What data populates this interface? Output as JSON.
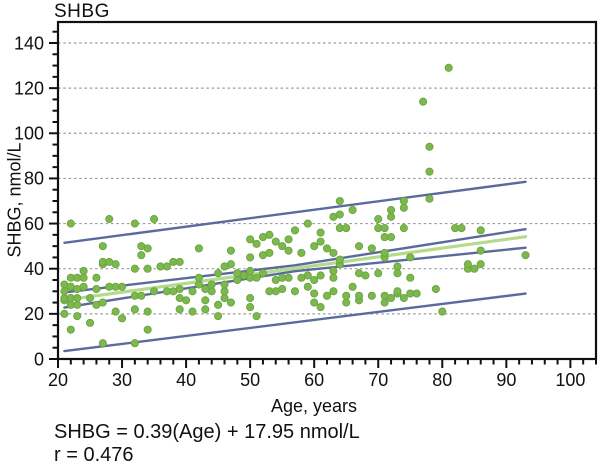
{
  "figure": {
    "title": "SHBG",
    "x_axis_label": "Age, years",
    "y_axis_label": "SHBG, nmol/L",
    "equation_line1": "SHBG = 0.39(Age) + 17.95 nmol/L",
    "equation_line2": "r = 0.476"
  },
  "colors": {
    "point_fill": "#7cb84e",
    "point_stroke": "#69a440",
    "regression_line": "#b6da8c",
    "interval_lines": "#5a6a9c",
    "gridline": "#9b9b9b",
    "axis": "#111111",
    "text": "#111111",
    "background": "#ffffff"
  },
  "chart_data": {
    "type": "scatter",
    "title": "SHBG",
    "xlabel": "Age, years",
    "ylabel": "SHBG, nmol/L",
    "xlim": [
      20,
      104
    ],
    "ylim": [
      0,
      149.3
    ],
    "x_ticks": [
      20,
      30,
      40,
      50,
      60,
      70,
      80,
      90,
      100
    ],
    "y_ticks": [
      0,
      20,
      40,
      60,
      80,
      100,
      120,
      140
    ],
    "x_minor_step": 2,
    "y_minor_step": 5,
    "grid": "horizontal-dashed",
    "legend": "none",
    "stats": {
      "slope": 0.39,
      "intercept": 17.95,
      "r": 0.476
    },
    "lines": [
      {
        "name": "prediction-upper",
        "color": "#5a6a9c",
        "width": 2.4,
        "points": [
          [
            21,
            51.5
          ],
          [
            93,
            78.5
          ]
        ]
      },
      {
        "name": "confidence-upper",
        "color": "#5a6a9c",
        "width": 2.4,
        "points": [
          [
            21,
            29.5
          ],
          [
            57,
            41.5
          ],
          [
            93,
            57.5
          ]
        ]
      },
      {
        "name": "regression",
        "color": "#b6da8c",
        "width": 3.2,
        "points": [
          [
            21,
            26.1
          ],
          [
            93,
            54.2
          ]
        ]
      },
      {
        "name": "confidence-lower",
        "color": "#5a6a9c",
        "width": 2.4,
        "points": [
          [
            21,
            22.8
          ],
          [
            57,
            38.9
          ],
          [
            93,
            49.3
          ]
        ]
      },
      {
        "name": "prediction-lower",
        "color": "#5a6a9c",
        "width": 2.4,
        "points": [
          [
            21,
            3.5
          ],
          [
            93,
            29
          ]
        ]
      }
    ],
    "points": [
      [
        21,
        20
      ],
      [
        21,
        26
      ],
      [
        21,
        27
      ],
      [
        21,
        30
      ],
      [
        21,
        33
      ],
      [
        22,
        13
      ],
      [
        22,
        24
      ],
      [
        22,
        27
      ],
      [
        22,
        32
      ],
      [
        22,
        36
      ],
      [
        22,
        60
      ],
      [
        23,
        19
      ],
      [
        23,
        24
      ],
      [
        23,
        27
      ],
      [
        23,
        31
      ],
      [
        23,
        36
      ],
      [
        24,
        32
      ],
      [
        24,
        36
      ],
      [
        24,
        39
      ],
      [
        25,
        16
      ],
      [
        25,
        27
      ],
      [
        26,
        24
      ],
      [
        26,
        31
      ],
      [
        26,
        36
      ],
      [
        27,
        7
      ],
      [
        27,
        25
      ],
      [
        27,
        42
      ],
      [
        27,
        43
      ],
      [
        27,
        50
      ],
      [
        28,
        32
      ],
      [
        28,
        43
      ],
      [
        28,
        62
      ],
      [
        29,
        21
      ],
      [
        29,
        32
      ],
      [
        29,
        42
      ],
      [
        30,
        18
      ],
      [
        30,
        32
      ],
      [
        32,
        7
      ],
      [
        32,
        22
      ],
      [
        32,
        28
      ],
      [
        32,
        40
      ],
      [
        32,
        60
      ],
      [
        33,
        28
      ],
      [
        33,
        46
      ],
      [
        33,
        50
      ],
      [
        34,
        13
      ],
      [
        34,
        21
      ],
      [
        34,
        40
      ],
      [
        34,
        49
      ],
      [
        35,
        30
      ],
      [
        35,
        62
      ],
      [
        36,
        41
      ],
      [
        37,
        30
      ],
      [
        37,
        41
      ],
      [
        38,
        30
      ],
      [
        38,
        43
      ],
      [
        39,
        22
      ],
      [
        39,
        27
      ],
      [
        39,
        31
      ],
      [
        39,
        43
      ],
      [
        40,
        26
      ],
      [
        41,
        21
      ],
      [
        41,
        30
      ],
      [
        42,
        33
      ],
      [
        42,
        36
      ],
      [
        42,
        49
      ],
      [
        43,
        22
      ],
      [
        43,
        26
      ],
      [
        43,
        31
      ],
      [
        44,
        30
      ],
      [
        44,
        33
      ],
      [
        45,
        19
      ],
      [
        45,
        24
      ],
      [
        45,
        38
      ],
      [
        46,
        27
      ],
      [
        46,
        30
      ],
      [
        46,
        33
      ],
      [
        46,
        41
      ],
      [
        47,
        25
      ],
      [
        47,
        42
      ],
      [
        47,
        48
      ],
      [
        48,
        35
      ],
      [
        48,
        38
      ],
      [
        49,
        37
      ],
      [
        50,
        23
      ],
      [
        50,
        27
      ],
      [
        50,
        36
      ],
      [
        50,
        39
      ],
      [
        50,
        45
      ],
      [
        50,
        53
      ],
      [
        51,
        19
      ],
      [
        51,
        36
      ],
      [
        51,
        51
      ],
      [
        52,
        38
      ],
      [
        52,
        46
      ],
      [
        52,
        54
      ],
      [
        53,
        30
      ],
      [
        53,
        47
      ],
      [
        53,
        55
      ],
      [
        54,
        30
      ],
      [
        54,
        35
      ],
      [
        54,
        52
      ],
      [
        55,
        31
      ],
      [
        55,
        36
      ],
      [
        55,
        50
      ],
      [
        56,
        36
      ],
      [
        56,
        48
      ],
      [
        56,
        53
      ],
      [
        57,
        30
      ],
      [
        57,
        57
      ],
      [
        58,
        36
      ],
      [
        58,
        47
      ],
      [
        59,
        32
      ],
      [
        59,
        37
      ],
      [
        59,
        60
      ],
      [
        60,
        25
      ],
      [
        60,
        29
      ],
      [
        60,
        35
      ],
      [
        60,
        50
      ],
      [
        61,
        23
      ],
      [
        61,
        37
      ],
      [
        61,
        52
      ],
      [
        61,
        56
      ],
      [
        62,
        28
      ],
      [
        62,
        49
      ],
      [
        63,
        30
      ],
      [
        63,
        36
      ],
      [
        63,
        39
      ],
      [
        63,
        47
      ],
      [
        63,
        63
      ],
      [
        64,
        42
      ],
      [
        64,
        44
      ],
      [
        64,
        58
      ],
      [
        64,
        64
      ],
      [
        64,
        70
      ],
      [
        65,
        25
      ],
      [
        65,
        28
      ],
      [
        65,
        58
      ],
      [
        66,
        32
      ],
      [
        66,
        66
      ],
      [
        67,
        26
      ],
      [
        67,
        28
      ],
      [
        67,
        38
      ],
      [
        67,
        50
      ],
      [
        68,
        37
      ],
      [
        69,
        28
      ],
      [
        69,
        49
      ],
      [
        70,
        38
      ],
      [
        70,
        58
      ],
      [
        70,
        62
      ],
      [
        71,
        25
      ],
      [
        71,
        28
      ],
      [
        71,
        45
      ],
      [
        71,
        47
      ],
      [
        71,
        54
      ],
      [
        71,
        58
      ],
      [
        72,
        27
      ],
      [
        72,
        54
      ],
      [
        72,
        63
      ],
      [
        72,
        66
      ],
      [
        73,
        29
      ],
      [
        73,
        30
      ],
      [
        73,
        38
      ],
      [
        73,
        41
      ],
      [
        74,
        27
      ],
      [
        74,
        58
      ],
      [
        74,
        67
      ],
      [
        74,
        70
      ],
      [
        75,
        29
      ],
      [
        75,
        36
      ],
      [
        75,
        45
      ],
      [
        76,
        29
      ],
      [
        77,
        114
      ],
      [
        78,
        71
      ],
      [
        78,
        83
      ],
      [
        78,
        94
      ],
      [
        79,
        31
      ],
      [
        80,
        21
      ],
      [
        81,
        129
      ],
      [
        82,
        58
      ],
      [
        83,
        58
      ],
      [
        84,
        40
      ],
      [
        84,
        42
      ],
      [
        85,
        40
      ],
      [
        86,
        42
      ],
      [
        86,
        48
      ],
      [
        86,
        57
      ],
      [
        93,
        46
      ]
    ]
  }
}
